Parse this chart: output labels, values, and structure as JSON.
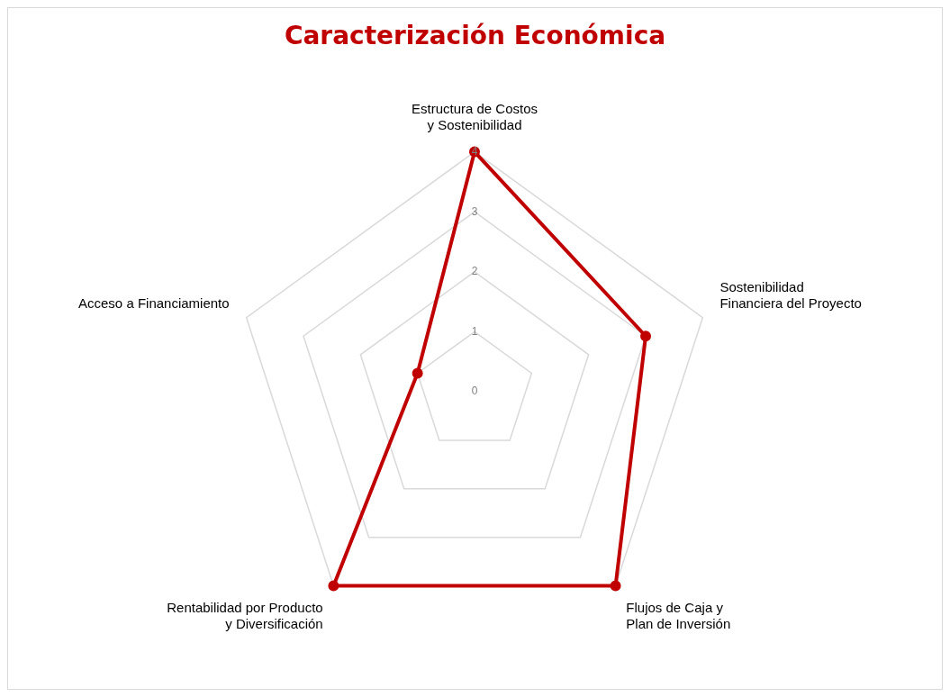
{
  "chart_data": {
    "type": "radar",
    "title": "Caracterización Económica",
    "categories": [
      "Estructura de Costos y Sostenibilidad",
      "Sostenibilidad Financiera del Proyecto",
      "Flujos de Caja y Plan de Inversión",
      "Rentabilidad por Producto y Diversificación",
      "Acceso a Financiamiento"
    ],
    "series": [
      {
        "color": "#c00000",
        "values": [
          4,
          3,
          4,
          4,
          1
        ]
      }
    ],
    "ylim": [
      0,
      4
    ],
    "yticks": [
      0,
      1,
      2,
      3,
      4
    ],
    "grid": true,
    "legend": false,
    "marker": "circle"
  }
}
